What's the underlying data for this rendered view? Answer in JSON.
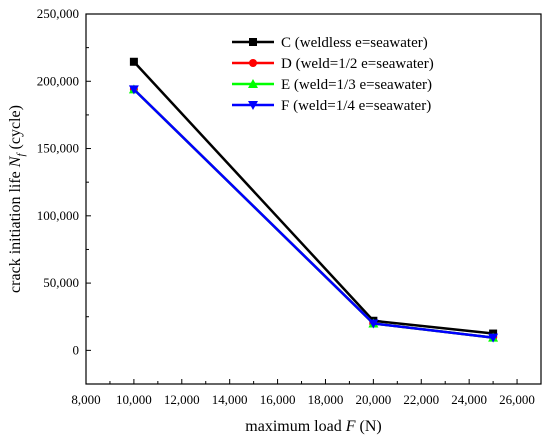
{
  "chart_data": {
    "type": "line",
    "xlabel": {
      "text": "maximum load ",
      "var": "F",
      "unit": " (N)"
    },
    "ylabel": {
      "text": "crack initiation life ",
      "var": "N",
      "sub": "f",
      "unit": " (cycle)"
    },
    "xlim": [
      8000,
      27000
    ],
    "ylim": [
      -25000,
      250000
    ],
    "xticks": [
      8000,
      10000,
      12000,
      14000,
      16000,
      18000,
      20000,
      22000,
      24000,
      26000
    ],
    "yticks": [
      0,
      50000,
      100000,
      150000,
      200000,
      250000
    ],
    "xtick_labels": [
      "8,000",
      "10,000",
      "12,000",
      "14,000",
      "16,000",
      "18,000",
      "20,000",
      "22,000",
      "24,000",
      "26,000"
    ],
    "ytick_labels": [
      "0",
      "50,000",
      "100,000",
      "150,000",
      "200,000",
      "250,000"
    ],
    "x": [
      10000,
      20000,
      25000
    ],
    "legend_position": "top-right",
    "grid": false,
    "series": [
      {
        "name": "C (weldless e=seawater)",
        "values": [
          214500,
          22000,
          12500
        ],
        "color": "#000000",
        "marker": "square"
      },
      {
        "name": "D (weld=1/2 e=seawater)",
        "values": [
          194000,
          20000,
          9500
        ],
        "color": "#ff0000",
        "marker": "circle"
      },
      {
        "name": "E (weld=1/3 e=seawater)",
        "values": [
          194000,
          20000,
          9500
        ],
        "color": "#00ff00",
        "marker": "triangle-up"
      },
      {
        "name": "F (weld=1/4 e=seawater)",
        "values": [
          194000,
          20000,
          9500
        ],
        "color": "#0000ff",
        "marker": "triangle-down"
      }
    ]
  }
}
